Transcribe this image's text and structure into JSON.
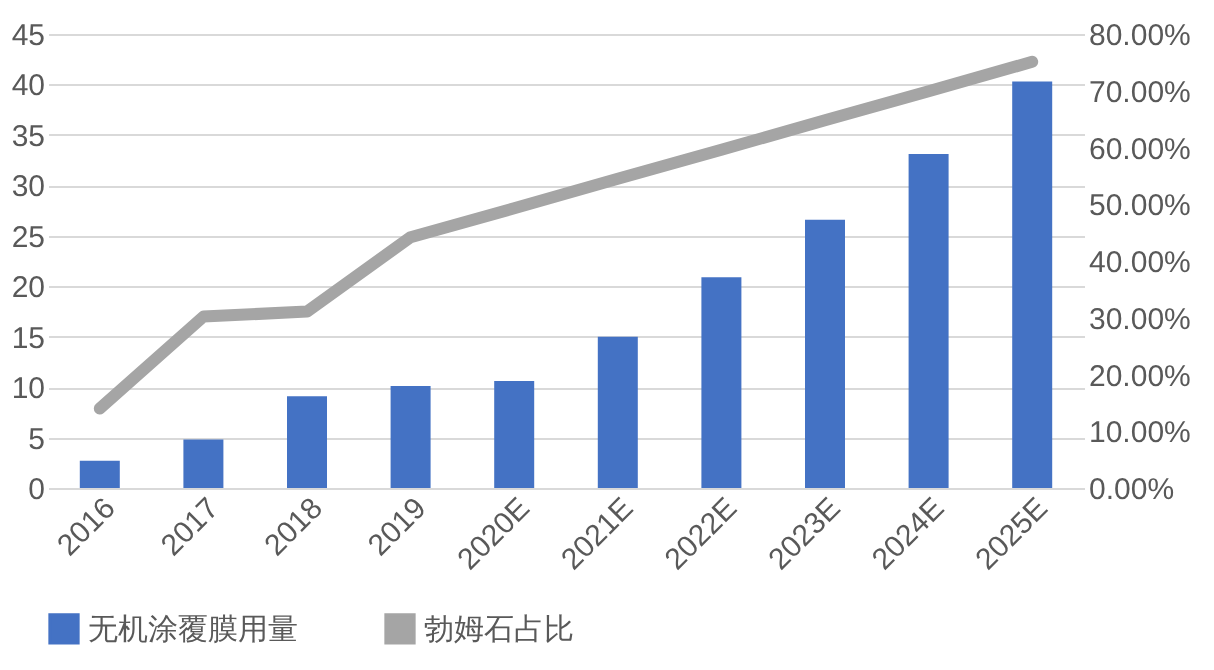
{
  "chart_data": {
    "type": "bar",
    "categories": [
      "2016",
      "2017",
      "2018",
      "2019",
      "2020E",
      "2021E",
      "2022E",
      "2023E",
      "2024E",
      "2025E"
    ],
    "series": [
      {
        "name": "无机涂覆膜用量",
        "color": "#4472c4",
        "values": [
          2.7,
          4.8,
          9.1,
          10.1,
          10.6,
          15.0,
          20.9,
          26.6,
          33.1,
          40.3
        ]
      },
      {
        "name": "勃姆石占比",
        "type": "line",
        "axis": "y2",
        "color": "#a5a5a5",
        "values": [
          14,
          30.2,
          31.1,
          44.2,
          49.3,
          54.5,
          59.6,
          64.8,
          69.9,
          75.1
        ]
      }
    ],
    "ylim": [
      0,
      45
    ],
    "yticks": [
      0,
      5,
      10,
      15,
      20,
      25,
      30,
      35,
      40,
      45
    ],
    "y2lim": [
      0,
      80
    ],
    "y2ticks": [
      {
        "value": 0,
        "label": "0.00%"
      },
      {
        "value": 10,
        "label": "10.00%"
      },
      {
        "value": 20,
        "label": "20.00%"
      },
      {
        "value": 30,
        "label": "30.00%"
      },
      {
        "value": 40,
        "label": "40.00%"
      },
      {
        "value": 50,
        "label": "50.00%"
      },
      {
        "value": 60,
        "label": "60.00%"
      },
      {
        "value": 70,
        "label": "70.00%"
      },
      {
        "value": 80,
        "label": "80.00%"
      }
    ],
    "grid": "y",
    "legend": "bottom"
  }
}
